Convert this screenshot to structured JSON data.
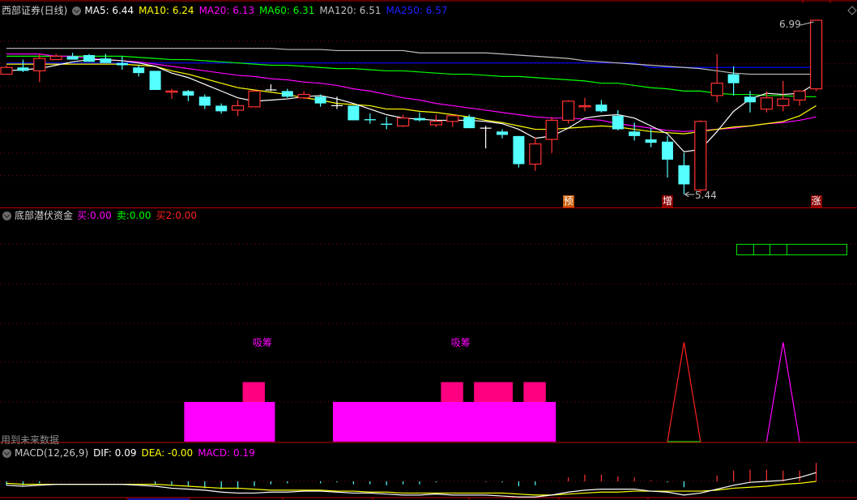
{
  "main": {
    "title": "西部证券(日线)",
    "ma_labels": [
      {
        "text": "MA5: 6.44",
        "color": "#ffffff"
      },
      {
        "text": "MA10: 6.24",
        "color": "#ffff00"
      },
      {
        "text": "MA20: 6.13",
        "color": "#ff00ff"
      },
      {
        "text": "MA60: 6.31",
        "color": "#00ff00"
      },
      {
        "text": "MA120: 6.51",
        "color": "#c0c0c0"
      },
      {
        "text": "MA250: 6.57",
        "color": "#0000ff"
      }
    ],
    "high_label": "6.99",
    "low_label": "5.44",
    "signal_marks": [
      {
        "text": "预",
        "candle": 35,
        "bg": "#c85a00"
      },
      {
        "text": "增",
        "candle": 41,
        "bg": "#8b0000"
      },
      {
        "text": "涨",
        "candle": 50,
        "bg": "#8b0000"
      }
    ],
    "colors": {
      "up": "#ff3232",
      "down": "#54ffff",
      "doji": "#ffffff",
      "grid": "#8b0000"
    }
  },
  "indicator": {
    "title": "底部潜伏资金",
    "values": [
      {
        "label": "买:",
        "value": "0.00",
        "color": "#ff00ff"
      },
      {
        "label": "卖:",
        "value": "0.00",
        "color": "#00ff00"
      },
      {
        "label": "买2:",
        "value": "0.00",
        "color": "#ff2020"
      }
    ],
    "annotation_label": "吸筹",
    "annotation_candles": [
      16,
      28
    ],
    "warning": "用到未来数据"
  },
  "macd": {
    "title": "MACD(12,26,9)",
    "dif": {
      "label": "DIF: 0.09",
      "color": "#ffffff"
    },
    "dea": {
      "label": "DEA: -0.00",
      "color": "#ffff00"
    },
    "macd": {
      "label": "MACD: 0.19",
      "color": "#ff00ff"
    }
  },
  "chart_data": [
    {
      "type": "candlestick",
      "fields": [
        "open",
        "high",
        "low",
        "close"
      ],
      "candles": [
        [
          6.51,
          6.59,
          6.51,
          6.57
        ],
        [
          6.57,
          6.64,
          6.53,
          6.54
        ],
        [
          6.54,
          6.69,
          6.44,
          6.65
        ],
        [
          6.64,
          6.69,
          6.64,
          6.67
        ],
        [
          6.67,
          6.7,
          6.64,
          6.64
        ],
        [
          6.68,
          6.69,
          6.62,
          6.62
        ],
        [
          6.65,
          6.69,
          6.61,
          6.61
        ],
        [
          6.61,
          6.67,
          6.55,
          6.59
        ],
        [
          6.57,
          6.59,
          6.49,
          6.52
        ],
        [
          6.54,
          6.54,
          6.37,
          6.37
        ],
        [
          6.35,
          6.38,
          6.29,
          6.36
        ],
        [
          6.36,
          6.37,
          6.27,
          6.32
        ],
        [
          6.31,
          6.33,
          6.2,
          6.23
        ],
        [
          6.23,
          6.25,
          6.16,
          6.18
        ],
        [
          6.19,
          6.28,
          6.14,
          6.23
        ],
        [
          6.22,
          6.37,
          6.22,
          6.36
        ],
        [
          6.37,
          6.42,
          6.36,
          6.37
        ],
        [
          6.36,
          6.38,
          6.3,
          6.31
        ],
        [
          6.3,
          6.36,
          6.29,
          6.33
        ],
        [
          6.31,
          6.33,
          6.22,
          6.25
        ],
        [
          6.23,
          6.31,
          6.2,
          6.23
        ],
        [
          6.23,
          6.23,
          6.1,
          6.1
        ],
        [
          6.11,
          6.16,
          6.07,
          6.1
        ],
        [
          6.07,
          6.13,
          6.02,
          6.06
        ],
        [
          6.05,
          6.15,
          6.04,
          6.12
        ],
        [
          6.12,
          6.17,
          6.09,
          6.1
        ],
        [
          6.06,
          6.15,
          6.04,
          6.09
        ],
        [
          6.09,
          6.14,
          6.04,
          6.14
        ],
        [
          6.13,
          6.15,
          6.03,
          6.03
        ],
        [
          6.03,
          6.05,
          5.85,
          6.03
        ],
        [
          6.0,
          6.02,
          5.94,
          5.97
        ],
        [
          5.96,
          5.96,
          5.68,
          5.71
        ],
        [
          5.71,
          5.95,
          5.65,
          5.89
        ],
        [
          5.93,
          6.13,
          5.81,
          6.1
        ],
        [
          6.1,
          6.28,
          6.07,
          6.27
        ],
        [
          6.22,
          6.3,
          6.18,
          6.23
        ],
        [
          6.24,
          6.28,
          6.17,
          6.18
        ],
        [
          6.14,
          6.19,
          6.01,
          6.02
        ],
        [
          6.0,
          6.08,
          5.92,
          5.96
        ],
        [
          5.93,
          6.03,
          5.86,
          5.9
        ],
        [
          5.91,
          5.96,
          5.59,
          5.75
        ],
        [
          5.7,
          5.81,
          5.44,
          5.53
        ],
        [
          5.48,
          6.1,
          5.45,
          6.09
        ],
        [
          6.32,
          6.69,
          6.26,
          6.43
        ],
        [
          6.51,
          6.58,
          6.32,
          6.43
        ],
        [
          6.31,
          6.36,
          6.17,
          6.26
        ],
        [
          6.2,
          6.36,
          6.17,
          6.3
        ],
        [
          6.23,
          6.45,
          6.18,
          6.29
        ],
        [
          6.28,
          6.36,
          6.23,
          6.36
        ],
        [
          6.38,
          6.99,
          6.36,
          6.99
        ]
      ],
      "series": [
        {
          "name": "MA5",
          "color": "#ffffff",
          "values": [
            6.54,
            6.55,
            6.56,
            6.59,
            6.62,
            6.64,
            6.64,
            6.63,
            6.61,
            6.58,
            6.52,
            6.48,
            6.42,
            6.36,
            6.3,
            6.27,
            6.28,
            6.29,
            6.31,
            6.32,
            6.29,
            6.25,
            6.2,
            6.15,
            6.12,
            6.11,
            6.1,
            6.1,
            6.1,
            6.09,
            6.07,
            6.02,
            5.94,
            5.96,
            6.03,
            6.12,
            6.14,
            6.15,
            6.12,
            6.05,
            5.98,
            5.82,
            5.84,
            6.0,
            6.18,
            6.29,
            6.34,
            6.33,
            6.34,
            6.43
          ]
        },
        {
          "name": "MA10",
          "color": "#ffff00",
          "values": [
            6.6,
            6.6,
            6.6,
            6.6,
            6.6,
            6.6,
            6.6,
            6.6,
            6.59,
            6.58,
            6.54,
            6.51,
            6.47,
            6.43,
            6.39,
            6.37,
            6.35,
            6.33,
            6.3,
            6.28,
            6.25,
            6.24,
            6.23,
            6.2,
            6.2,
            6.18,
            6.17,
            6.15,
            6.13,
            6.1,
            6.08,
            6.05,
            6.02,
            6.02,
            6.03,
            6.04,
            6.05,
            6.04,
            6.02,
            6.0,
            5.99,
            5.98,
            6.0,
            6.02,
            6.04,
            6.05,
            6.07,
            6.09,
            6.14,
            6.23
          ]
        },
        {
          "name": "MA20",
          "color": "#ff00ff",
          "values": [
            6.69,
            6.69,
            6.69,
            6.67,
            6.67,
            6.65,
            6.64,
            6.63,
            6.62,
            6.6,
            6.58,
            6.56,
            6.54,
            6.52,
            6.5,
            6.49,
            6.47,
            6.46,
            6.44,
            6.43,
            6.41,
            6.38,
            6.36,
            6.33,
            6.3,
            6.28,
            6.25,
            6.23,
            6.21,
            6.19,
            6.17,
            6.15,
            6.13,
            6.12,
            6.12,
            6.11,
            6.1,
            6.07,
            6.05,
            6.03,
            6.01,
            6.0,
            6.01,
            6.02,
            6.03,
            6.05,
            6.07,
            6.08,
            6.1,
            6.13
          ]
        },
        {
          "name": "MA60",
          "color": "#00ff00",
          "values": [
            6.67,
            6.67,
            6.67,
            6.67,
            6.67,
            6.67,
            6.67,
            6.67,
            6.66,
            6.65,
            6.64,
            6.64,
            6.63,
            6.62,
            6.61,
            6.6,
            6.59,
            6.59,
            6.58,
            6.57,
            6.56,
            6.56,
            6.55,
            6.54,
            6.54,
            6.53,
            6.52,
            6.51,
            6.51,
            6.5,
            6.49,
            6.49,
            6.48,
            6.47,
            6.46,
            6.45,
            6.43,
            6.43,
            6.41,
            6.39,
            6.38,
            6.36,
            6.36,
            6.34,
            6.33,
            6.33,
            6.32,
            6.32,
            6.31,
            6.31
          ]
        },
        {
          "name": "MA120",
          "color": "#c0c0c0",
          "values": [
            6.74,
            6.74,
            6.74,
            6.74,
            6.74,
            6.74,
            6.74,
            6.74,
            6.74,
            6.74,
            6.74,
            6.74,
            6.74,
            6.74,
            6.74,
            6.74,
            6.74,
            6.73,
            6.73,
            6.73,
            6.72,
            6.72,
            6.72,
            6.72,
            6.72,
            6.7,
            6.7,
            6.7,
            6.7,
            6.7,
            6.69,
            6.68,
            6.67,
            6.66,
            6.65,
            6.63,
            6.62,
            6.61,
            6.6,
            6.59,
            6.58,
            6.57,
            6.56,
            6.54,
            6.52,
            6.51,
            6.51,
            6.51,
            6.51,
            6.51
          ]
        },
        {
          "name": "MA250",
          "color": "#0000ff",
          "values": [
            6.61,
            6.61,
            6.61,
            6.61,
            6.61,
            6.61,
            6.61,
            6.61,
            6.61,
            6.61,
            6.61,
            6.61,
            6.61,
            6.61,
            6.61,
            6.61,
            6.61,
            6.61,
            6.61,
            6.61,
            6.61,
            6.61,
            6.61,
            6.61,
            6.61,
            6.61,
            6.61,
            6.61,
            6.61,
            6.61,
            6.61,
            6.61,
            6.61,
            6.61,
            6.61,
            6.61,
            6.61,
            6.61,
            6.61,
            6.57,
            6.57,
            6.57,
            6.57,
            6.57,
            6.57,
            6.57,
            6.57,
            6.57,
            6.57,
            6.57
          ]
        }
      ]
    },
    {
      "type": "bar",
      "magenta_runs": {
        "level": 1,
        "color": "#ff00ff",
        "runs": [
          [
            12,
            17
          ],
          [
            21,
            34
          ]
        ]
      },
      "pink_runs": {
        "level": 1.5,
        "color": "#ff0080",
        "runs": [
          [
            15,
            16
          ],
          [
            27,
            28
          ],
          [
            29,
            31
          ],
          [
            32,
            33
          ]
        ]
      },
      "spikes": [
        {
          "color": "#ff2020",
          "peak_candle": 42,
          "value": 2.5
        },
        {
          "color": "#ff00ff",
          "peak_candle": 48,
          "value": 2.5
        }
      ]
    },
    {
      "type": "line",
      "dif": [
        -0.04,
        -0.05,
        -0.04,
        -0.03,
        -0.03,
        -0.03,
        -0.03,
        -0.03,
        -0.04,
        -0.05,
        -0.07,
        -0.08,
        -0.09,
        -0.11,
        -0.12,
        -0.12,
        -0.11,
        -0.11,
        -0.1,
        -0.1,
        -0.11,
        -0.12,
        -0.12,
        -0.13,
        -0.14,
        -0.14,
        -0.13,
        -0.14,
        -0.14,
        -0.14,
        -0.15,
        -0.16,
        -0.16,
        -0.14,
        -0.11,
        -0.09,
        -0.08,
        -0.08,
        -0.08,
        -0.1,
        -0.11,
        -0.14,
        -0.12,
        -0.08,
        -0.04,
        -0.01,
        0.0,
        0.01,
        0.04,
        0.09
      ],
      "dea": [
        -0.02,
        -0.03,
        -0.03,
        -0.03,
        -0.03,
        -0.03,
        -0.03,
        -0.03,
        -0.03,
        -0.03,
        -0.04,
        -0.05,
        -0.06,
        -0.07,
        -0.07,
        -0.08,
        -0.09,
        -0.09,
        -0.09,
        -0.09,
        -0.1,
        -0.1,
        -0.11,
        -0.11,
        -0.12,
        -0.12,
        -0.12,
        -0.12,
        -0.12,
        -0.12,
        -0.12,
        -0.13,
        -0.14,
        -0.14,
        -0.13,
        -0.12,
        -0.11,
        -0.11,
        -0.1,
        -0.1,
        -0.1,
        -0.1,
        -0.1,
        -0.09,
        -0.07,
        -0.06,
        -0.05,
        -0.03,
        -0.02,
        0.0
      ],
      "macd": [
        -0.04,
        -0.04,
        -0.02,
        0,
        0,
        0,
        0,
        0,
        0,
        -0.03,
        -0.04,
        -0.05,
        -0.07,
        -0.08,
        -0.08,
        -0.05,
        -0.03,
        -0.02,
        0,
        -0.02,
        -0.01,
        -0.03,
        -0.03,
        -0.04,
        -0.03,
        -0.03,
        -0.01,
        0,
        0,
        -0.005,
        -0.01,
        -0.05,
        -0.04,
        0,
        0.04,
        0.07,
        0.07,
        0.05,
        0.04,
        0.01,
        -0.01,
        -0.06,
        0,
        0.06,
        0.11,
        0.12,
        0.12,
        0.11,
        0.11,
        0.19
      ]
    }
  ]
}
